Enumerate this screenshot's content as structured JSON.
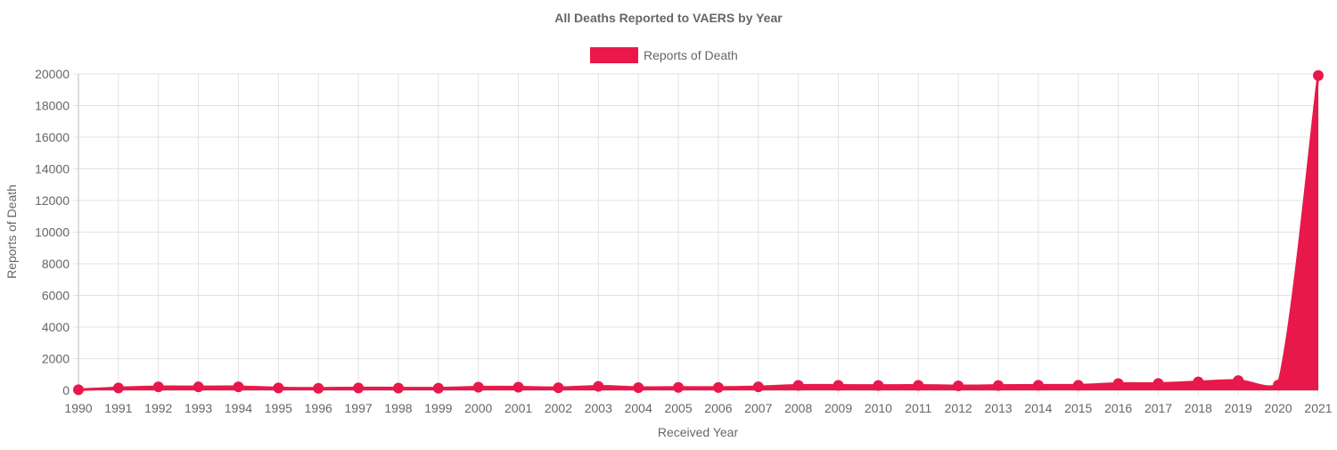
{
  "chart_data": {
    "type": "area",
    "title": "All Deaths Reported to VAERS by Year",
    "xlabel": "Received Year",
    "ylabel": "Reports of Death",
    "ylim": [
      0,
      20000
    ],
    "yticks": [
      0,
      2000,
      4000,
      6000,
      8000,
      10000,
      12000,
      14000,
      16000,
      18000,
      20000
    ],
    "grid": true,
    "legend_position": "top-center",
    "categories": [
      "1990",
      "1991",
      "1992",
      "1993",
      "1994",
      "1995",
      "1996",
      "1997",
      "1998",
      "1999",
      "2000",
      "2001",
      "2002",
      "2003",
      "2004",
      "2005",
      "2006",
      "2007",
      "2008",
      "2009",
      "2010",
      "2011",
      "2012",
      "2013",
      "2014",
      "2015",
      "2016",
      "2017",
      "2018",
      "2019",
      "2020",
      "2021"
    ],
    "series": [
      {
        "name": "Reports of Death",
        "color": "#e8194a",
        "values": [
          35,
          150,
          220,
          215,
          220,
          150,
          125,
          150,
          140,
          135,
          195,
          200,
          160,
          250,
          170,
          180,
          175,
          220,
          310,
          310,
          300,
          310,
          280,
          300,
          320,
          320,
          420,
          430,
          530,
          610,
          330,
          19900
        ]
      }
    ]
  }
}
